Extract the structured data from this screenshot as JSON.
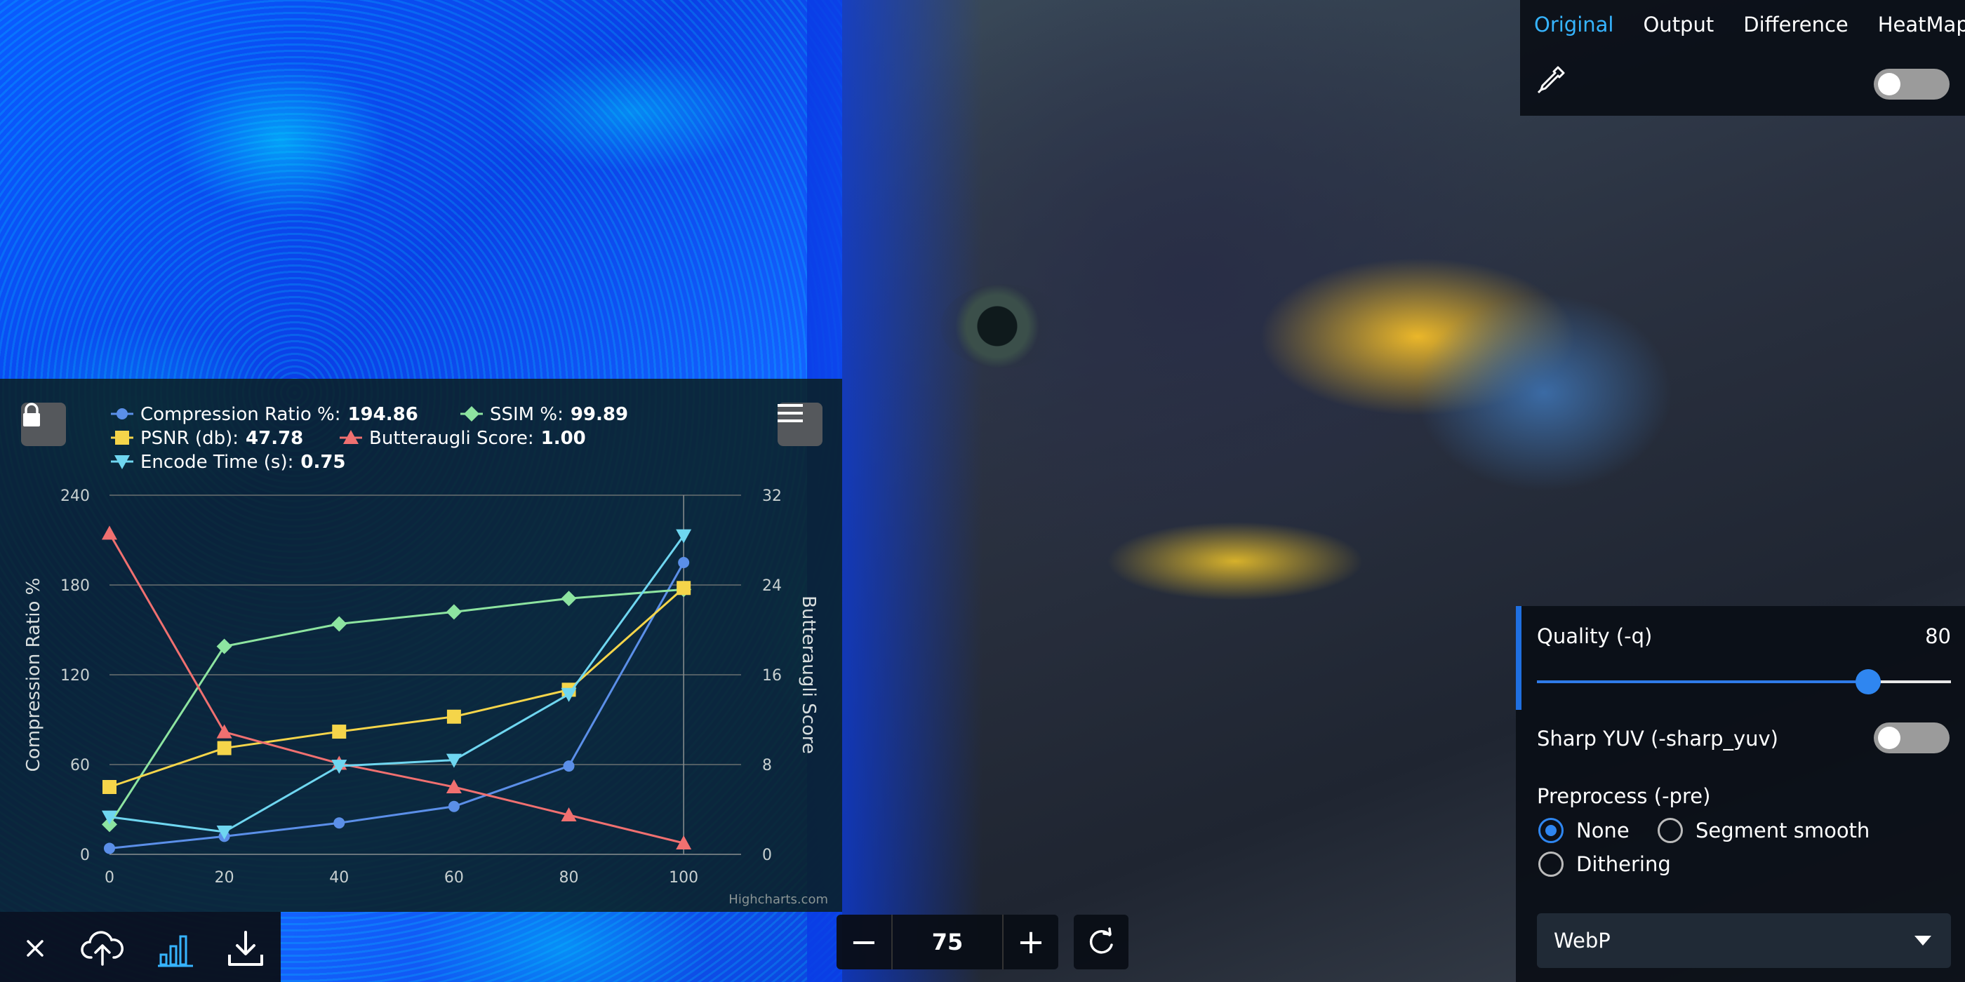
{
  "view_panel": {
    "tabs": [
      {
        "label": "Original",
        "active": true
      },
      {
        "label": "Output",
        "active": false
      },
      {
        "label": "Difference",
        "active": false
      },
      {
        "label": "HeatMap",
        "active": false
      }
    ],
    "toggle_on": false
  },
  "chart_data": {
    "type": "line",
    "x": [
      0,
      20,
      40,
      60,
      80,
      100
    ],
    "legend": [
      {
        "label": "Compression Ratio %:",
        "value": "194.86",
        "color": "#5b8fe8",
        "marker": "circle"
      },
      {
        "label": "SSIM %:",
        "value": "99.89",
        "color": "#8de4a0",
        "marker": "diamond"
      },
      {
        "label": "PSNR (db):",
        "value": "47.78",
        "color": "#f5d54a",
        "marker": "square"
      },
      {
        "label": "Butteraugli Score:",
        "value": "1.00",
        "color": "#f07070",
        "marker": "triangle"
      },
      {
        "label": "Encode Time (s):",
        "value": "0.75",
        "color": "#6fd6f0",
        "marker": "triangle-down"
      }
    ],
    "series": [
      {
        "name": "Compression Ratio %",
        "axis": "left",
        "values": [
          4,
          12,
          21,
          32,
          59,
          195
        ]
      },
      {
        "name": "SSIM %",
        "axis": "left",
        "values": [
          20,
          139,
          154,
          162,
          171,
          177
        ]
      },
      {
        "name": "PSNR (db)",
        "axis": "left",
        "values": [
          45,
          71,
          82,
          92,
          110,
          178
        ]
      },
      {
        "name": "Butteraugli Score",
        "axis": "right",
        "values": [
          28.6,
          10.9,
          8.1,
          6.0,
          3.5,
          1.0
        ]
      },
      {
        "name": "Encode Time (s)",
        "axis": "left",
        "values": [
          25,
          15,
          59,
          63,
          107,
          213
        ]
      }
    ],
    "y_left": {
      "label": "Compression Ratio %",
      "min": 0,
      "max": 240,
      "ticks": [
        0,
        60,
        120,
        180,
        240
      ]
    },
    "y_right": {
      "label": "Butteraugli Score",
      "min": 0,
      "max": 32,
      "ticks": [
        0,
        8,
        16,
        24,
        32
      ]
    },
    "x_ticks": [
      0,
      20,
      40,
      60,
      80,
      100
    ],
    "crosshair_x": 100,
    "credits": "Highcharts.com"
  },
  "toolbar": {
    "close_icon": "close-icon",
    "upload_icon": "cloud-upload-icon",
    "chart_icon": "bar-chart-icon",
    "download_icon": "download-icon"
  },
  "zoom": {
    "minus": "−",
    "value": "75",
    "plus": "+"
  },
  "settings": {
    "quality_label": "Quality (-q)",
    "quality_value": "80",
    "quality_fraction": 0.8,
    "sharp_yuv_label": "Sharp YUV (-sharp_yuv)",
    "sharp_yuv_on": false,
    "preprocess_label": "Preprocess (-pre)",
    "preprocess_options": [
      {
        "label": "None",
        "selected": true
      },
      {
        "label": "Segment smooth",
        "selected": false
      },
      {
        "label": "Dithering",
        "selected": false
      }
    ],
    "format_value": "WebP"
  }
}
